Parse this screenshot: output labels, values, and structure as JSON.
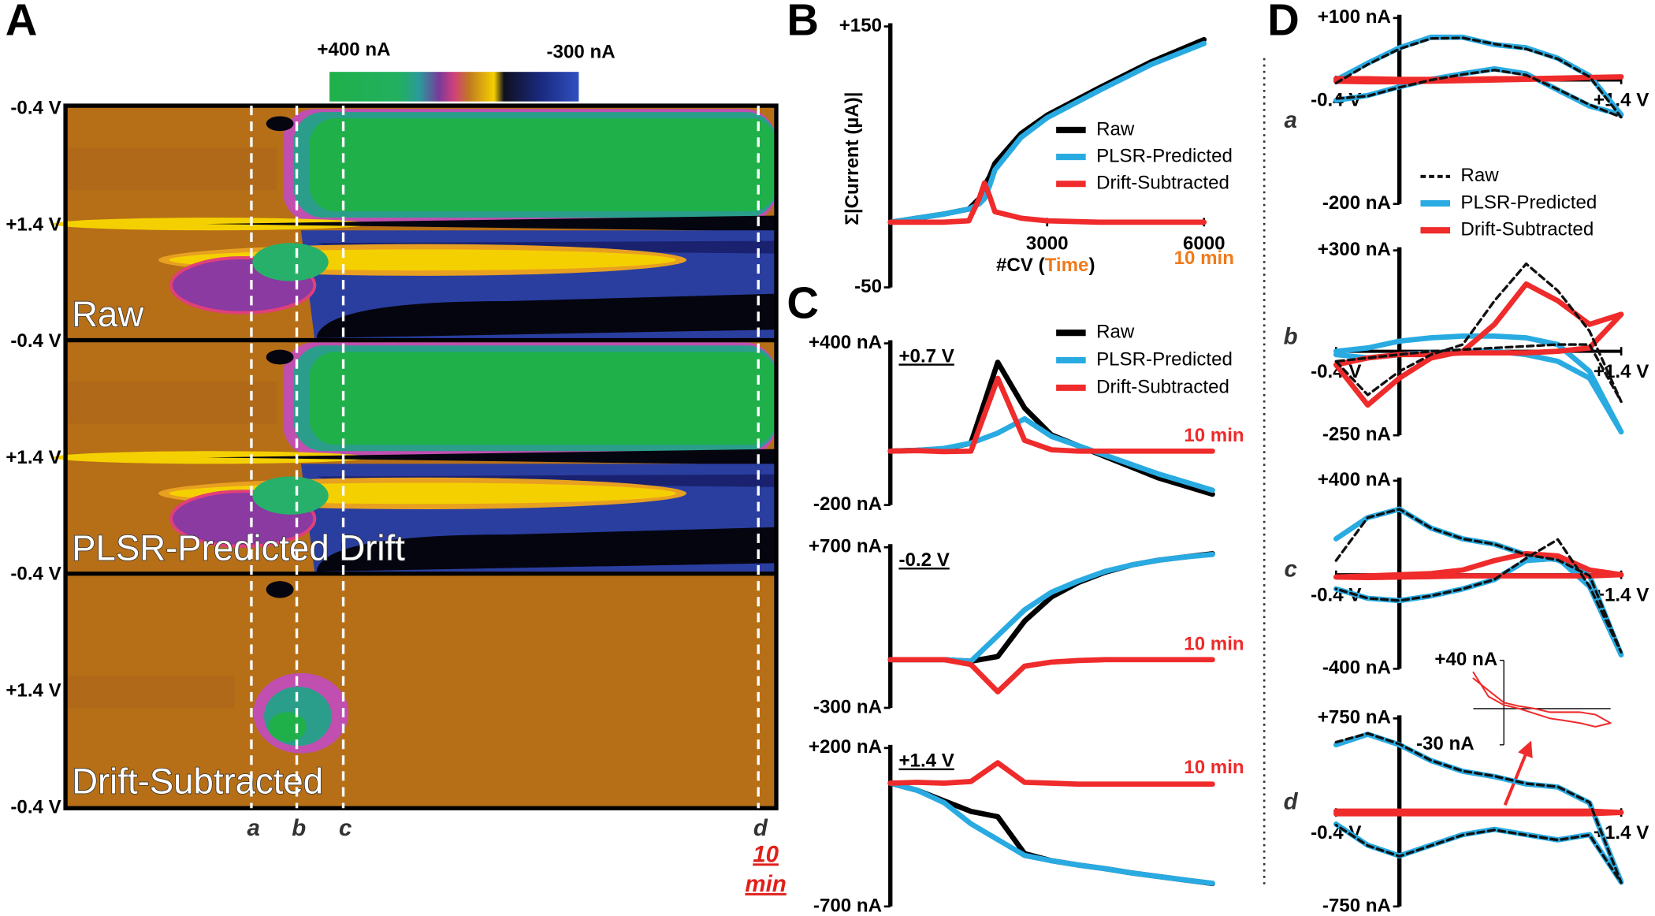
{
  "chart_data": [
    {
      "type": "heatmap",
      "panel": "A",
      "colorbar_labels": [
        "+400 nA",
        "-300 nA"
      ],
      "y_labels": [
        "-0.4 V",
        "+1.4 V",
        "-0.4 V",
        "+1.4 V",
        "-0.4 V",
        "+1.4 V",
        "-0.4 V"
      ],
      "row_titles": [
        "Raw",
        "PLSR-Predicted Drift",
        "Drift-Subtracted"
      ],
      "markers": [
        "a",
        "b",
        "c",
        "d"
      ],
      "marker_note": [
        "10",
        "min"
      ],
      "marker_note_color": "#e0201b"
    },
    {
      "type": "line",
      "panel": "B",
      "ylabel": "Σ|Current (µA)|",
      "xlabel": [
        "#CV (",
        "Time",
        ")"
      ],
      "xlabel_color": "#f07a1a",
      "annotation": "10 min",
      "annotation_color": "#f07a1a",
      "xlim": [
        0,
        6000
      ],
      "xticks": [
        3000,
        6000
      ],
      "ylim": [
        -50,
        150
      ],
      "yticks": [
        {
          "value": 150,
          "label": "+150"
        },
        -50
      ],
      "x": [
        0,
        500,
        1000,
        1500,
        1700,
        1800,
        1900,
        2000,
        2500,
        3000,
        4000,
        5000,
        6000
      ],
      "series": [
        {
          "name": "Raw",
          "color": "#000000",
          "values": [
            0,
            3,
            6,
            10,
            18,
            28,
            35,
            45,
            68,
            82,
            103,
            123,
            140
          ]
        },
        {
          "name": "PLSR-Predicted",
          "color": "#29abe2",
          "values": [
            0,
            3,
            6,
            10,
            14,
            18,
            28,
            40,
            65,
            80,
            101,
            121,
            137
          ]
        },
        {
          "name": "Drift-Subtracted",
          "color": "#ef2b2b",
          "values": [
            0,
            0,
            0,
            1,
            18,
            30,
            20,
            8,
            3,
            1,
            0,
            0,
            0
          ]
        }
      ]
    },
    {
      "type": "line",
      "panel": "C",
      "label": "+0.7 V",
      "annotation": "10 min",
      "annotation_color": "#ef2b2b",
      "ylim": [
        -200,
        400
      ],
      "yticks": [
        {
          "value": 400,
          "label": "+400 nA"
        },
        {
          "value": -200,
          "label": "-200 nA"
        }
      ],
      "series": [
        {
          "name": "Raw",
          "color": "#000000",
          "values": [
            0,
            3,
            8,
            30,
            330,
            160,
            60,
            20,
            -20,
            -60,
            -100,
            -130,
            -160
          ]
        },
        {
          "name": "PLSR-Predicted",
          "color": "#29abe2",
          "values": [
            0,
            3,
            10,
            30,
            67,
            120,
            55,
            20,
            -15,
            -50,
            -85,
            -115,
            -145
          ]
        },
        {
          "name": "Drift-Subtracted",
          "color": "#ef2b2b",
          "values": [
            0,
            2,
            -2,
            0,
            270,
            40,
            5,
            0,
            0,
            0,
            0,
            0,
            0
          ]
        }
      ]
    },
    {
      "type": "line",
      "label": "-0.2 V",
      "annotation": "10 min",
      "annotation_color": "#ef2b2b",
      "ylim": [
        -300,
        700
      ],
      "yticks": [
        {
          "value": 700,
          "label": "+700 nA"
        },
        {
          "value": -300,
          "label": "-300 nA"
        }
      ],
      "series": [
        {
          "name": "Raw",
          "color": "#000000",
          "values": [
            0,
            0,
            0,
            -10,
            20,
            240,
            390,
            480,
            545,
            590,
            620,
            640,
            660
          ]
        },
        {
          "name": "PLSR-Predicted",
          "color": "#29abe2",
          "values": [
            0,
            0,
            0,
            -10,
            150,
            310,
            420,
            490,
            550,
            590,
            620,
            640,
            655
          ]
        },
        {
          "name": "Drift-Subtracted",
          "color": "#ef2b2b",
          "values": [
            0,
            0,
            0,
            -30,
            -200,
            -40,
            -15,
            -5,
            0,
            0,
            0,
            0,
            0
          ]
        }
      ]
    },
    {
      "type": "line",
      "label": "+1.4 V",
      "annotation": "10 min",
      "annotation_color": "#ef2b2b",
      "ylim": [
        -700,
        200
      ],
      "yticks": [
        {
          "value": 200,
          "label": "+200 nA"
        },
        {
          "value": -700,
          "label": "-700 nA"
        }
      ],
      "series": [
        {
          "name": "Raw",
          "color": "#000000",
          "values": [
            0,
            -40,
            -100,
            -160,
            -190,
            -400,
            -440,
            -465,
            -485,
            -510,
            -530,
            -550,
            -570
          ]
        },
        {
          "name": "PLSR-Predicted",
          "color": "#29abe2",
          "values": [
            0,
            -40,
            -110,
            -230,
            -320,
            -410,
            -440,
            -465,
            -485,
            -510,
            -530,
            -550,
            -568
          ]
        },
        {
          "name": "Drift-Subtracted",
          "color": "#ef2b2b",
          "values": [
            0,
            5,
            0,
            10,
            116,
            5,
            0,
            -5,
            -5,
            -5,
            -5,
            -5,
            -5
          ]
        }
      ]
    },
    {
      "type": "line",
      "panel": "D",
      "label": "a",
      "xlim": [
        -0.4,
        1.4
      ],
      "xticks": [
        {
          "value": -0.4,
          "label": "-0.4 V"
        },
        {
          "value": 1.4,
          "label": "+1.4 V"
        }
      ],
      "ylim": [
        -200,
        100
      ],
      "yticks": [
        {
          "value": 100,
          "label": "+100 nA"
        },
        {
          "value": -200,
          "label": "-200 nA"
        }
      ],
      "x": [
        -0.4,
        -0.2,
        0,
        0.2,
        0.4,
        0.6,
        0.8,
        1.0,
        1.2,
        1.4,
        1.2,
        1.0,
        0.8,
        0.6,
        0.4,
        0.2,
        0,
        -0.2,
        -0.4
      ],
      "series": [
        {
          "name": "Raw",
          "color": "#111111",
          "dash": true,
          "values": [
            -5,
            25,
            50,
            67,
            68,
            58,
            50,
            34,
            5,
            -60,
            -40,
            -15,
            8,
            16,
            9,
            0,
            -12,
            -26,
            -30
          ]
        },
        {
          "name": "PLSR-Predicted",
          "color": "#29abe2",
          "values": [
            0,
            27,
            52,
            69,
            69,
            57,
            52,
            35,
            7,
            -56,
            -42,
            -16,
            10,
            18,
            10,
            1,
            -11,
            -25,
            -33
          ]
        },
        {
          "name": "Drift-Subtracted",
          "color": "#ef2b2b",
          "values": [
            2,
            2,
            1,
            1,
            1,
            2,
            2,
            3,
            4,
            5,
            4,
            2,
            1,
            0,
            -1,
            -2,
            -3,
            -3,
            -2
          ]
        }
      ]
    },
    {
      "type": "line",
      "label": "b",
      "xlim": [
        -0.4,
        1.4
      ],
      "xticks": [
        {
          "value": -0.4,
          "label": "-0.4 V"
        },
        {
          "value": 1.4,
          "label": "+1.4 V"
        }
      ],
      "ylim": [
        -250,
        300
      ],
      "yticks": [
        {
          "value": 300,
          "label": "+300 nA"
        },
        {
          "value": -250,
          "label": "-250 nA"
        }
      ],
      "x": [
        -0.4,
        -0.2,
        0,
        0.2,
        0.4,
        0.6,
        0.8,
        1.0,
        1.2,
        1.4,
        1.2,
        1.0,
        0.8,
        0.6,
        0.4,
        0.2,
        0,
        -0.2,
        -0.4
      ],
      "series": [
        {
          "name": "Raw",
          "color": "#111111",
          "dash": true,
          "values": [
            -30,
            -130,
            -60,
            -10,
            20,
            150,
            260,
            180,
            60,
            -150,
            20,
            20,
            15,
            10,
            5,
            0,
            -10,
            -20,
            -30
          ]
        },
        {
          "name": "PLSR-Predicted",
          "color": "#29abe2",
          "values": [
            0,
            10,
            30,
            40,
            45,
            45,
            40,
            20,
            -60,
            -240,
            -80,
            -30,
            -10,
            0,
            0,
            -5,
            -10,
            -20,
            -10
          ]
        },
        {
          "name": "Drift-Subtracted",
          "color": "#ef2b2b",
          "values": [
            -40,
            -160,
            -80,
            -20,
            0,
            80,
            200,
            150,
            80,
            110,
            10,
            0,
            -5,
            -5,
            -5,
            -10,
            -10,
            -20,
            -40
          ]
        }
      ]
    },
    {
      "type": "line",
      "label": "c",
      "xlim": [
        -0.4,
        1.4
      ],
      "xticks": [
        {
          "value": -0.4,
          "label": "-0.4 V"
        },
        {
          "value": 1.4,
          "label": "+1.4 V"
        }
      ],
      "ylim": [
        -400,
        400
      ],
      "yticks": [
        {
          "value": 400,
          "label": "+400 nA"
        },
        {
          "value": -400,
          "label": "-400 nA"
        }
      ],
      "x": [
        -0.4,
        -0.2,
        0,
        0.2,
        0.4,
        0.6,
        0.8,
        1.0,
        1.2,
        1.4,
        1.2,
        1.0,
        0.8,
        0.6,
        0.4,
        0.2,
        0,
        -0.2,
        -0.4
      ],
      "series": [
        {
          "name": "Raw",
          "color": "#111111",
          "dash": true,
          "values": [
            60,
            243,
            279,
            198,
            153,
            130,
            85,
            63,
            -4,
            -330,
            -50,
            150,
            70,
            -20,
            -60,
            -90,
            -110,
            -100,
            -60
          ]
        },
        {
          "name": "PLSR-Predicted",
          "color": "#29abe2",
          "values": [
            153,
            243,
            279,
            198,
            153,
            130,
            85,
            63,
            -4,
            -341,
            -50,
            70,
            60,
            -20,
            -60,
            -90,
            -110,
            -100,
            -60
          ]
        },
        {
          "name": "Drift-Subtracted",
          "color": "#ef2b2b",
          "values": [
            -10,
            -5,
            0,
            5,
            20,
            60,
            90,
            80,
            20,
            0,
            -5,
            -5,
            -5,
            -5,
            -5,
            -8,
            -10,
            -12,
            -10
          ]
        }
      ]
    },
    {
      "type": "line",
      "label": "d",
      "xlim": [
        -0.4,
        1.4
      ],
      "xticks": [
        {
          "value": -0.4,
          "label": "-0.4 V"
        },
        {
          "value": 1.4,
          "label": "+1.4 V"
        }
      ],
      "ylim": [
        -750,
        750
      ],
      "yticks": [
        {
          "value": 750,
          "label": "+750 nA"
        },
        {
          "value": -750,
          "label": "-750 nA"
        }
      ],
      "x": [
        -0.4,
        -0.2,
        0,
        0.2,
        0.4,
        0.6,
        0.8,
        1.0,
        1.2,
        1.4,
        1.2,
        1.0,
        0.8,
        0.6,
        0.4,
        0.2,
        0,
        -0.2,
        -0.4
      ],
      "series": [
        {
          "name": "Raw",
          "color": "#111111",
          "dash": true,
          "values": [
            560,
            630,
            545,
            415,
            330,
            290,
            230,
            205,
            80,
            -560,
            -180,
            -220,
            -180,
            -140,
            -180,
            -265,
            -350,
            -265,
            -100
          ]
        },
        {
          "name": "PLSR-Predicted",
          "color": "#29abe2",
          "values": [
            539,
            624,
            539,
            413,
            328,
            286,
            227,
            202,
            76,
            -556,
            -177,
            -219,
            -177,
            -135,
            -177,
            -261,
            -346,
            -261,
            -93
          ]
        },
        {
          "name": "Drift-Subtracted",
          "color": "#ef2b2b",
          "values": [
            10,
            10,
            10,
            10,
            10,
            10,
            10,
            10,
            10,
            0,
            -10,
            -10,
            -10,
            -10,
            -10,
            -10,
            -10,
            -10,
            -10
          ]
        }
      ],
      "inset": {
        "ylim": [
          -30,
          40
        ],
        "yticks": [
          {
            "value": 40,
            "label": "+40 nA"
          },
          {
            "value": -30,
            "label": "-30 nA"
          }
        ],
        "series": [
          {
            "color": "#ef2b2b",
            "values": [
              25,
              15,
              5,
              2,
              0,
              -3,
              -3,
              -3,
              -5,
              -12,
              -15,
              -12,
              -10,
              -8,
              -4,
              0,
              3,
              10,
              30
            ]
          }
        ]
      }
    }
  ]
}
